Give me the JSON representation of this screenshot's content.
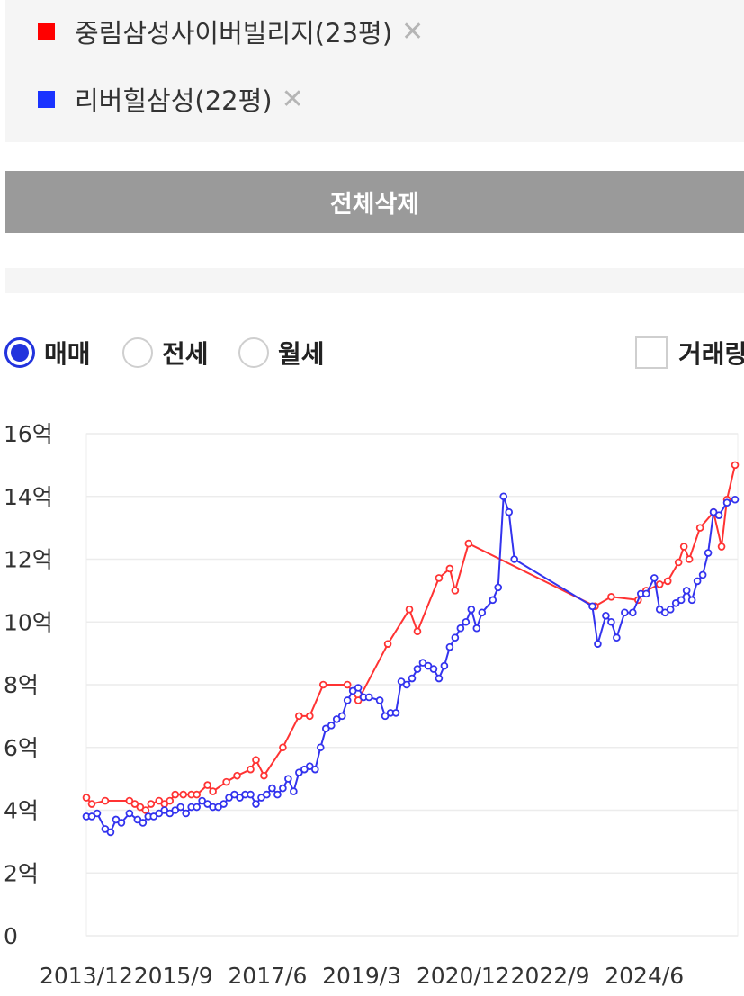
{
  "legend": {
    "items": [
      {
        "label": "중림삼성사이버빌리지(23평)",
        "color": "#ff0000",
        "remove": "✕"
      },
      {
        "label": "리버힐삼성(22평)",
        "color": "#1a33ff",
        "remove": "✕"
      }
    ]
  },
  "delete_all_label": "전체삭제",
  "trade_types": [
    {
      "label": "매매",
      "selected": true
    },
    {
      "label": "전세",
      "selected": false
    },
    {
      "label": "월세",
      "selected": false
    }
  ],
  "volume_toggle_label": "거래량",
  "chart_data": {
    "type": "line",
    "ylim": [
      0,
      16
    ],
    "yticks": [
      {
        "value": 16,
        "label": "16억"
      },
      {
        "value": 14,
        "label": "14억"
      },
      {
        "value": 12,
        "label": "12억"
      },
      {
        "value": 10,
        "label": "10억"
      },
      {
        "value": 8,
        "label": "8억"
      },
      {
        "value": 6,
        "label": "6억"
      },
      {
        "value": 4,
        "label": "4억"
      },
      {
        "value": 2,
        "label": "2억"
      },
      {
        "value": 0,
        "label": "0"
      }
    ],
    "xlim": [
      2013.95,
      2026.05
    ],
    "xticks": [
      {
        "value": 2013.95,
        "label": "2013/12"
      },
      {
        "value": 2015.7,
        "label": "2015/9"
      },
      {
        "value": 2017.45,
        "label": "2017/6"
      },
      {
        "value": 2019.2,
        "label": "2019/3"
      },
      {
        "value": 2020.95,
        "label": "2020/12"
      },
      {
        "value": 2022.7,
        "label": "2022/9"
      },
      {
        "value": 2024.45,
        "label": "2024/6"
      }
    ],
    "series": [
      {
        "name": "중림삼성사이버빌리지(23평)",
        "color": "#ff3333",
        "points": [
          [
            2013.95,
            4.4
          ],
          [
            2014.05,
            4.2
          ],
          [
            2014.3,
            4.3
          ],
          [
            2014.75,
            4.3
          ],
          [
            2014.85,
            4.2
          ],
          [
            2014.95,
            4.1
          ],
          [
            2015.05,
            4.0
          ],
          [
            2015.15,
            4.2
          ],
          [
            2015.3,
            4.3
          ],
          [
            2015.4,
            4.2
          ],
          [
            2015.5,
            4.3
          ],
          [
            2015.6,
            4.5
          ],
          [
            2015.75,
            4.5
          ],
          [
            2015.9,
            4.5
          ],
          [
            2016.0,
            4.5
          ],
          [
            2016.2,
            4.8
          ],
          [
            2016.3,
            4.6
          ],
          [
            2016.55,
            4.9
          ],
          [
            2016.75,
            5.1
          ],
          [
            2017.0,
            5.3
          ],
          [
            2017.1,
            5.6
          ],
          [
            2017.25,
            5.1
          ],
          [
            2017.6,
            6.0
          ],
          [
            2017.9,
            7.0
          ],
          [
            2018.1,
            7.0
          ],
          [
            2018.35,
            8.0
          ],
          [
            2018.8,
            8.0
          ],
          [
            2019.0,
            7.5
          ],
          [
            2019.55,
            9.3
          ],
          [
            2019.95,
            10.4
          ],
          [
            2020.1,
            9.7
          ],
          [
            2020.5,
            11.4
          ],
          [
            2020.7,
            11.7
          ],
          [
            2020.8,
            11.0
          ],
          [
            2021.05,
            12.5
          ],
          [
            2023.4,
            10.5
          ],
          [
            2023.7,
            10.8
          ],
          [
            2024.2,
            10.7
          ],
          [
            2024.35,
            11.0
          ],
          [
            2024.6,
            11.2
          ],
          [
            2024.75,
            11.3
          ],
          [
            2024.95,
            11.9
          ],
          [
            2025.05,
            12.4
          ],
          [
            2025.15,
            12.0
          ],
          [
            2025.35,
            13.0
          ],
          [
            2025.6,
            13.5
          ],
          [
            2025.75,
            12.4
          ],
          [
            2025.85,
            13.9
          ],
          [
            2026.0,
            15.0
          ]
        ]
      },
      {
        "name": "리버힐삼성(22평)",
        "color": "#3333ee",
        "points": [
          [
            2013.95,
            3.8
          ],
          [
            2014.05,
            3.8
          ],
          [
            2014.15,
            3.9
          ],
          [
            2014.3,
            3.4
          ],
          [
            2014.4,
            3.3
          ],
          [
            2014.5,
            3.7
          ],
          [
            2014.6,
            3.6
          ],
          [
            2014.75,
            3.9
          ],
          [
            2014.9,
            3.7
          ],
          [
            2015.0,
            3.6
          ],
          [
            2015.1,
            3.8
          ],
          [
            2015.2,
            3.8
          ],
          [
            2015.3,
            3.9
          ],
          [
            2015.4,
            4.0
          ],
          [
            2015.5,
            3.9
          ],
          [
            2015.6,
            4.0
          ],
          [
            2015.7,
            4.1
          ],
          [
            2015.8,
            3.9
          ],
          [
            2015.9,
            4.1
          ],
          [
            2016.0,
            4.1
          ],
          [
            2016.1,
            4.3
          ],
          [
            2016.2,
            4.2
          ],
          [
            2016.3,
            4.1
          ],
          [
            2016.4,
            4.1
          ],
          [
            2016.5,
            4.2
          ],
          [
            2016.6,
            4.4
          ],
          [
            2016.7,
            4.5
          ],
          [
            2016.8,
            4.4
          ],
          [
            2016.9,
            4.5
          ],
          [
            2017.0,
            4.5
          ],
          [
            2017.1,
            4.2
          ],
          [
            2017.2,
            4.4
          ],
          [
            2017.3,
            4.5
          ],
          [
            2017.4,
            4.7
          ],
          [
            2017.5,
            4.5
          ],
          [
            2017.6,
            4.7
          ],
          [
            2017.7,
            5.0
          ],
          [
            2017.8,
            4.6
          ],
          [
            2017.9,
            5.2
          ],
          [
            2018.0,
            5.3
          ],
          [
            2018.1,
            5.4
          ],
          [
            2018.2,
            5.3
          ],
          [
            2018.3,
            6.0
          ],
          [
            2018.4,
            6.6
          ],
          [
            2018.5,
            6.7
          ],
          [
            2018.6,
            6.9
          ],
          [
            2018.7,
            7.0
          ],
          [
            2018.8,
            7.5
          ],
          [
            2018.9,
            7.8
          ],
          [
            2019.0,
            7.9
          ],
          [
            2019.1,
            7.6
          ],
          [
            2019.2,
            7.6
          ],
          [
            2019.4,
            7.5
          ],
          [
            2019.5,
            7.0
          ],
          [
            2019.6,
            7.1
          ],
          [
            2019.7,
            7.1
          ],
          [
            2019.8,
            8.1
          ],
          [
            2019.9,
            8.0
          ],
          [
            2020.0,
            8.2
          ],
          [
            2020.1,
            8.5
          ],
          [
            2020.2,
            8.7
          ],
          [
            2020.3,
            8.6
          ],
          [
            2020.4,
            8.5
          ],
          [
            2020.5,
            8.2
          ],
          [
            2020.6,
            8.6
          ],
          [
            2020.7,
            9.2
          ],
          [
            2020.8,
            9.5
          ],
          [
            2020.9,
            9.8
          ],
          [
            2021.0,
            10.0
          ],
          [
            2021.1,
            10.4
          ],
          [
            2021.2,
            9.8
          ],
          [
            2021.3,
            10.3
          ],
          [
            2021.5,
            10.7
          ],
          [
            2021.6,
            11.1
          ],
          [
            2021.7,
            14.0
          ],
          [
            2021.8,
            13.5
          ],
          [
            2021.9,
            12.0
          ],
          [
            2023.35,
            10.5
          ],
          [
            2023.45,
            9.3
          ],
          [
            2023.6,
            10.2
          ],
          [
            2023.7,
            10.0
          ],
          [
            2023.8,
            9.5
          ],
          [
            2023.95,
            10.3
          ],
          [
            2024.1,
            10.3
          ],
          [
            2024.25,
            10.9
          ],
          [
            2024.35,
            10.9
          ],
          [
            2024.5,
            11.4
          ],
          [
            2024.6,
            10.4
          ],
          [
            2024.7,
            10.3
          ],
          [
            2024.8,
            10.4
          ],
          [
            2024.9,
            10.6
          ],
          [
            2025.0,
            10.7
          ],
          [
            2025.1,
            11.0
          ],
          [
            2025.2,
            10.7
          ],
          [
            2025.3,
            11.3
          ],
          [
            2025.4,
            11.5
          ],
          [
            2025.5,
            12.2
          ],
          [
            2025.6,
            13.5
          ],
          [
            2025.7,
            13.4
          ],
          [
            2025.85,
            13.8
          ],
          [
            2026.0,
            13.9
          ]
        ]
      }
    ]
  }
}
